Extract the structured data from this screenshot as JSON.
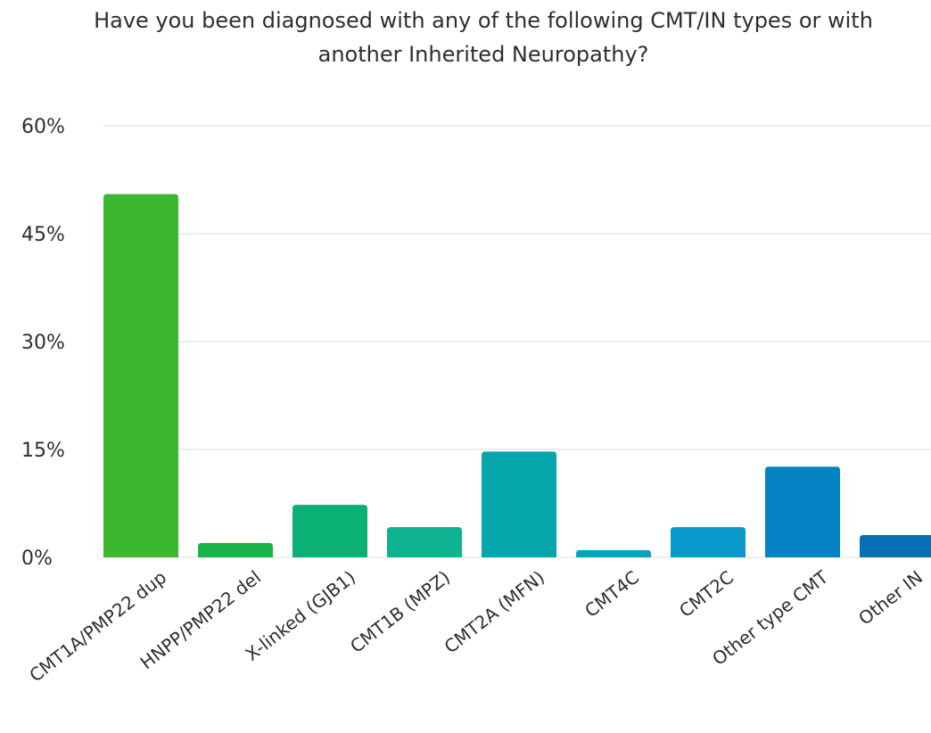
{
  "chart_data": {
    "type": "bar",
    "title_line1": "Have you been diagnosed with any of the following CMT/IN types or with",
    "title_line2": "another Inherited Neuropathy?",
    "categories": [
      "CMT1A/PMP22 dup",
      "HNPP/PMP22 del",
      "X-linked (GJB1)",
      "CMT1B (MPZ)",
      "CMT2A (MFN)",
      "CMT4C",
      "CMT2C",
      "Other type CMT",
      "Other IN"
    ],
    "values": [
      50.5,
      2.0,
      7.3,
      4.2,
      14.7,
      1.0,
      4.2,
      12.6,
      3.1
    ],
    "colors": [
      "#3cb82f",
      "#19b54a",
      "#0ab074",
      "#0db28f",
      "#04a6ab",
      "#0aa3bf",
      "#0898c9",
      "#0482c4",
      "#056fb6"
    ],
    "yticks": [
      "0%",
      "15%",
      "30%",
      "45%",
      "60%"
    ],
    "ytick_values": [
      0,
      15,
      30,
      45,
      60
    ],
    "ylim": [
      0,
      60
    ],
    "grid": true
  }
}
